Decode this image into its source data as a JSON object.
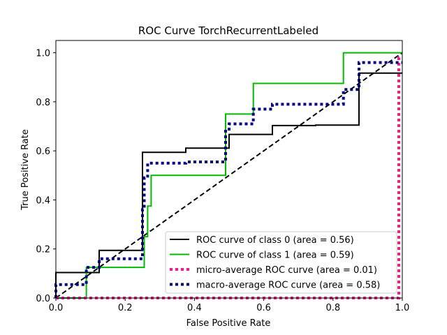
{
  "chart_data": {
    "type": "line",
    "title": "ROC Curve TorchRecurrentLabeled",
    "xlabel": "False Positive Rate",
    "ylabel": "True Positive Rate",
    "xlim": [
      0.0,
      1.0
    ],
    "ylim": [
      0.0,
      1.05
    ],
    "x_ticks": [
      "0.0",
      "0.2",
      "0.4",
      "0.6",
      "0.8",
      "1.0"
    ],
    "y_ticks": [
      "0.0",
      "0.2",
      "0.4",
      "0.6",
      "0.8",
      "1.0"
    ],
    "grid": false,
    "legend_position": "lower-right",
    "series": [
      {
        "name": "ROC curve of class 0 (area = 0.56)",
        "color": "#000000",
        "style": "solid",
        "x": [
          0.0,
          0.0,
          0.125,
          0.125,
          0.25,
          0.25,
          0.375,
          0.375,
          0.5,
          0.5,
          0.625,
          0.625,
          0.75,
          0.75,
          0.875,
          0.875,
          1.0
        ],
        "y": [
          0.0,
          0.104,
          0.104,
          0.194,
          0.194,
          0.594,
          0.594,
          0.611,
          0.611,
          0.667,
          0.667,
          0.703,
          0.703,
          0.705,
          0.705,
          0.917,
          0.917
        ]
      },
      {
        "name": "ROC curve of class 1 (area = 0.59)",
        "color": "#00bb00",
        "style": "solid",
        "x": [
          0.0,
          0.088,
          0.088,
          0.255,
          0.255,
          0.265,
          0.265,
          0.275,
          0.275,
          0.49,
          0.49,
          0.57,
          0.57,
          0.83,
          0.83,
          1.0
        ],
        "y": [
          0.0,
          0.0,
          0.125,
          0.125,
          0.25,
          0.25,
          0.375,
          0.375,
          0.5,
          0.5,
          0.75,
          0.75,
          0.875,
          0.875,
          1.0,
          1.0
        ]
      },
      {
        "name": "micro-average ROC curve (area = 0.01)",
        "color": "#ff1493",
        "style": "dotted",
        "x": [
          0.0,
          0.99,
          0.99,
          1.0
        ],
        "y": [
          0.0,
          0.0,
          0.98,
          0.98
        ]
      },
      {
        "name": "macro-average ROC curve (area = 0.58)",
        "color": "#000080",
        "style": "dotted",
        "x": [
          0.0,
          0.0,
          0.088,
          0.088,
          0.125,
          0.125,
          0.25,
          0.25,
          0.255,
          0.255,
          0.265,
          0.265,
          0.375,
          0.375,
          0.49,
          0.49,
          0.5,
          0.5,
          0.57,
          0.57,
          0.625,
          0.625,
          0.83,
          0.83,
          0.875,
          0.875,
          1.0
        ],
        "y": [
          0.0,
          0.055,
          0.055,
          0.125,
          0.125,
          0.16,
          0.16,
          0.36,
          0.36,
          0.49,
          0.49,
          0.55,
          0.55,
          0.555,
          0.555,
          0.68,
          0.68,
          0.71,
          0.71,
          0.77,
          0.77,
          0.79,
          0.79,
          0.85,
          0.85,
          0.96,
          0.96
        ]
      },
      {
        "name": "",
        "color": "#000000",
        "style": "dashed",
        "x": [
          0.0,
          1.0
        ],
        "y": [
          0.0,
          1.0
        ]
      }
    ]
  }
}
